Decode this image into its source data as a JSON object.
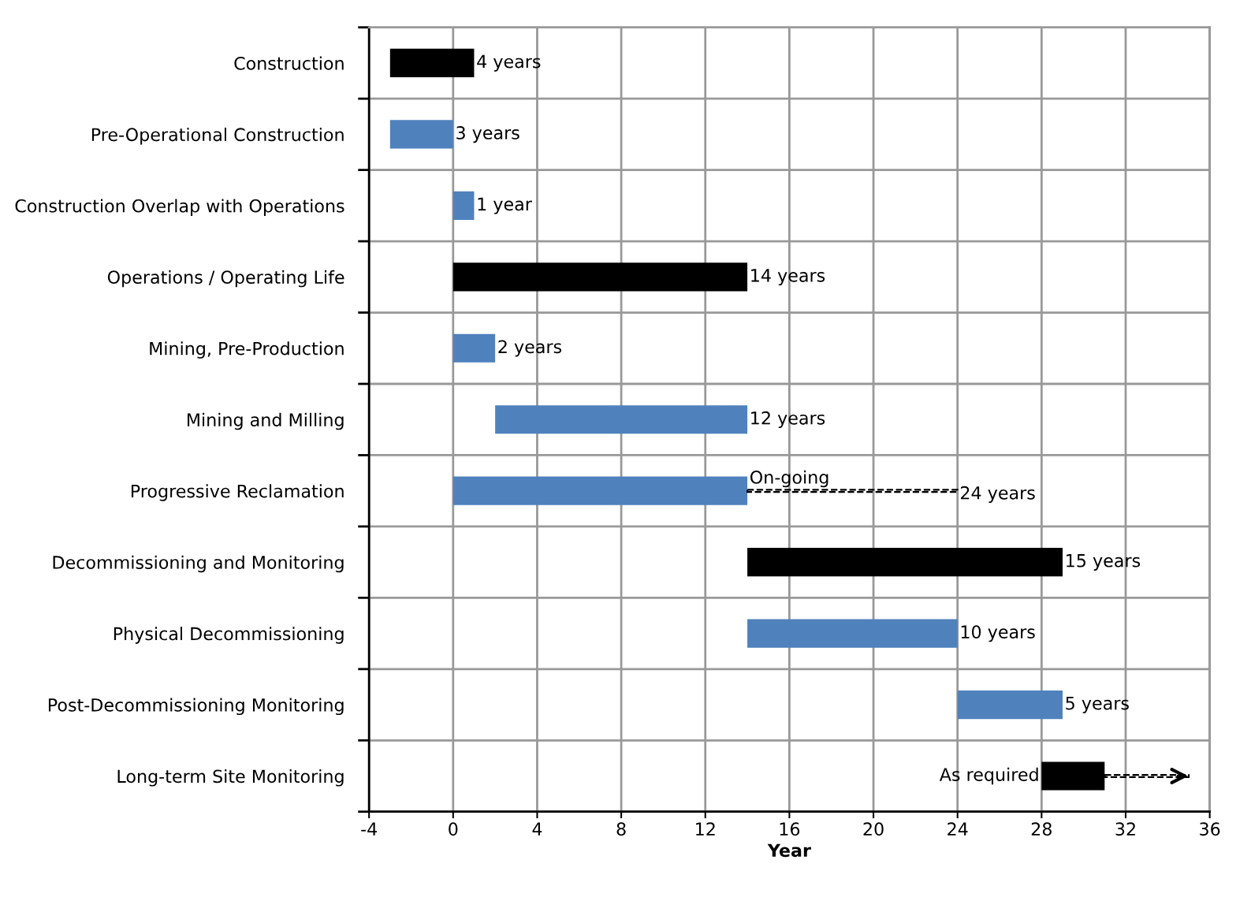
{
  "chart_data": {
    "type": "bar",
    "orientation": "horizontal",
    "xlabel": "Year",
    "categories": [
      "Construction",
      "Pre-Operational Construction",
      "Construction Overlap with Operations",
      "Operations / Operating Life",
      "Mining, Pre-Production",
      "Mining and Milling",
      "Progressive Reclamation",
      "Decommissioning and Monitoring",
      "Physical Decommissioning",
      "Post-Decommissioning Monitoring",
      "Long-term Site Monitoring"
    ],
    "series": [
      {
        "colors": [
          "#000000",
          "#4f81bd",
          "#4f81bd",
          "#000000",
          "#4f81bd",
          "#4f81bd",
          "#4f81bd",
          "#000000",
          "#4f81bd",
          "#4f81bd",
          "#000000"
        ],
        "base": [
          -3,
          -3,
          0,
          0,
          0,
          2,
          0,
          14,
          14,
          24,
          28
        ],
        "values": [
          4,
          3,
          1,
          14,
          2,
          12,
          14,
          15,
          10,
          5,
          3
        ],
        "value_labels": [
          "4 years",
          "3 years",
          "1 year",
          "14 years",
          "2 years",
          "12 years",
          null,
          "15 years",
          "10 years",
          "5 years",
          null
        ]
      },
      {
        "color": "#000000",
        "line_style": "dashed",
        "base": [
          null,
          null,
          null,
          null,
          null,
          null,
          14,
          null,
          null,
          null,
          31
        ],
        "values": [
          null,
          null,
          null,
          null,
          null,
          null,
          10,
          null,
          null,
          null,
          4
        ]
      }
    ],
    "annotations": [
      {
        "text": "On-going",
        "x": 14,
        "y": "Progressive Reclamation"
      },
      {
        "text": "24 years",
        "x": 24,
        "y": "Progressive Reclamation"
      },
      {
        "text": "As required",
        "x": 28,
        "y": "Long-term Site Monitoring"
      }
    ],
    "xlim": [
      -4,
      36
    ],
    "xticks": [
      -4,
      0,
      4,
      8,
      12,
      16,
      20,
      24,
      28,
      32,
      36
    ],
    "grid": true
  }
}
